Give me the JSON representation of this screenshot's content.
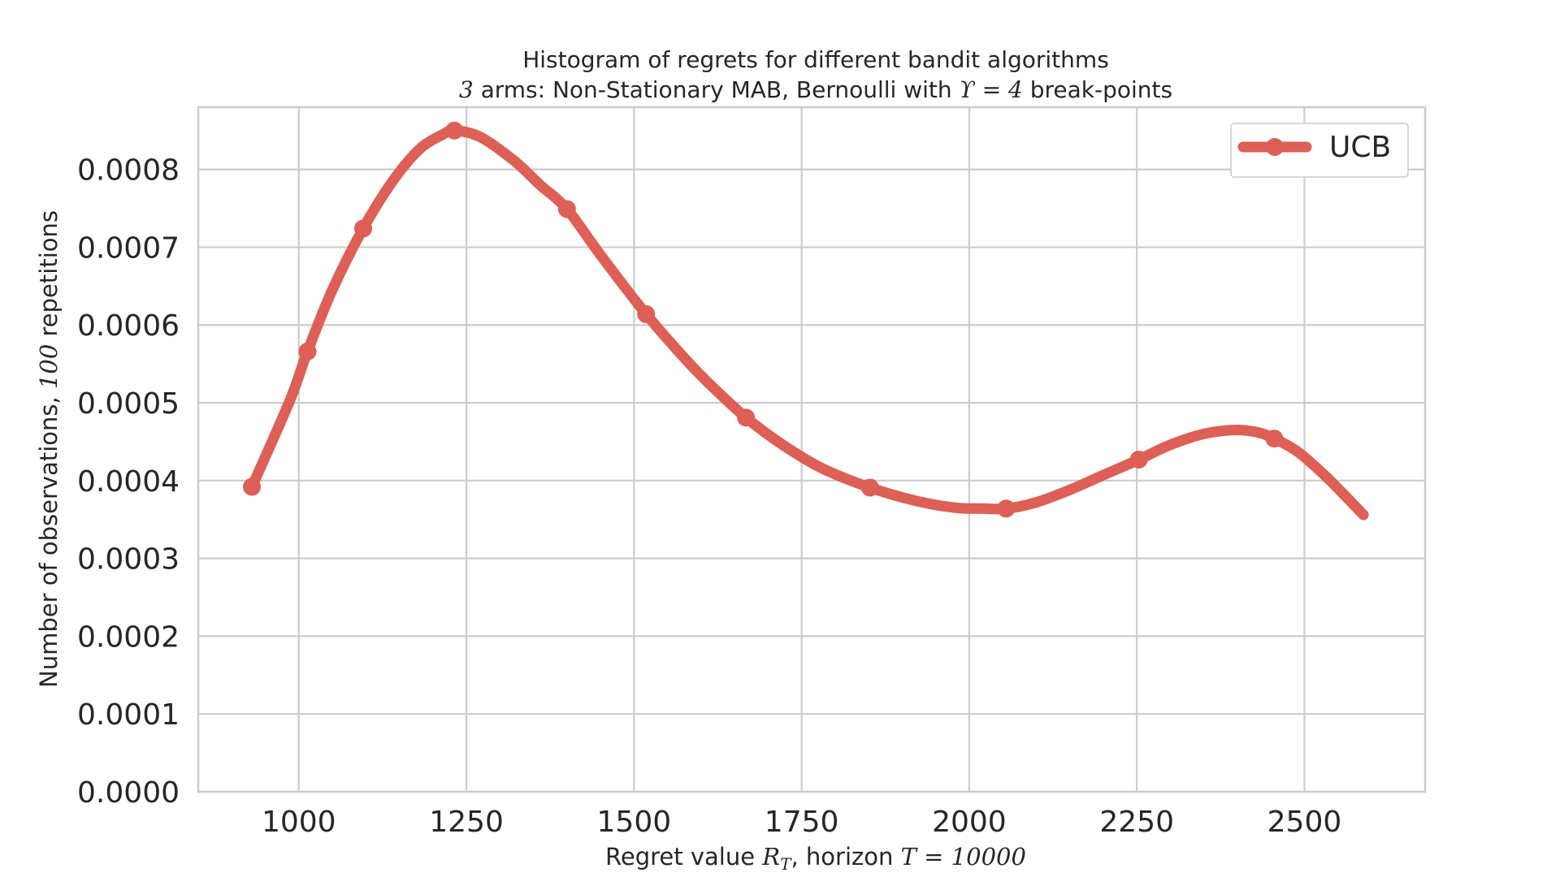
{
  "chart_data": {
    "type": "line",
    "title": "Histogram of regrets for different bandit algorithms",
    "subtitle": {
      "prefix_math": "3",
      "text1": " arms: Non-Stationary MAB, Bernoulli with ",
      "math": "ϒ = 4",
      "text2": " break-points"
    },
    "xlabel": {
      "text1": "Regret value ",
      "math_var": "R",
      "math_sub": "T",
      "text2": ", horizon ",
      "math2": "T = 10000"
    },
    "ylabel": {
      "text1": "Number of observations, ",
      "math": "100",
      "text2": " repetitions"
    },
    "xlim": [
      850,
      2680
    ],
    "ylim": [
      0,
      0.00088
    ],
    "xticks": [
      1000,
      1250,
      1500,
      1750,
      2000,
      2250,
      2500
    ],
    "xtick_labels": [
      "1000",
      "1250",
      "1500",
      "1750",
      "2000",
      "2250",
      "2500"
    ],
    "yticks": [
      0,
      0.0001,
      0.0002,
      0.0003,
      0.0004,
      0.0005,
      0.0006,
      0.0007,
      0.0008
    ],
    "ytick_labels": [
      "0.0000",
      "0.0001",
      "0.0002",
      "0.0003",
      "0.0004",
      "0.0005",
      "0.0006",
      "0.0007",
      "0.0008"
    ],
    "grid": true,
    "legend_position": "top-right",
    "series": [
      {
        "name": "UCB",
        "color": "#dd5f55",
        "curve": [
          [
            930,
            0.000392
          ],
          [
            960,
            0.00045
          ],
          [
            990,
            0.00051
          ],
          [
            1013,
            0.000566
          ],
          [
            1050,
            0.000645
          ],
          [
            1096,
            0.000724
          ],
          [
            1140,
            0.000785
          ],
          [
            1180,
            0.000826
          ],
          [
            1215,
            0.000845
          ],
          [
            1232,
            0.00085
          ],
          [
            1270,
            0.000842
          ],
          [
            1320,
            0.000812
          ],
          [
            1360,
            0.00078
          ],
          [
            1400,
            0.000749
          ],
          [
            1450,
            0.00069
          ],
          [
            1518,
            0.000614
          ],
          [
            1580,
            0.000553
          ],
          [
            1620,
            0.000518
          ],
          [
            1667,
            0.000481
          ],
          [
            1720,
            0.000447
          ],
          [
            1780,
            0.000416
          ],
          [
            1852,
            0.000391
          ],
          [
            1920,
            0.000374
          ],
          [
            1980,
            0.000365
          ],
          [
            2020,
            0.000364
          ],
          [
            2055,
            0.000364
          ],
          [
            2100,
            0.000372
          ],
          [
            2150,
            0.000388
          ],
          [
            2200,
            0.000407
          ],
          [
            2253,
            0.000427
          ],
          [
            2300,
            0.000446
          ],
          [
            2350,
            0.00046
          ],
          [
            2395,
            0.000465
          ],
          [
            2430,
            0.000462
          ],
          [
            2455,
            0.000454
          ],
          [
            2490,
            0.000437
          ],
          [
            2530,
            0.000407
          ],
          [
            2560,
            0.000381
          ],
          [
            2588,
            0.000356
          ]
        ],
        "markers": [
          [
            930,
            0.000392
          ],
          [
            1013,
            0.000566
          ],
          [
            1096,
            0.000724
          ],
          [
            1232,
            0.00085
          ],
          [
            1400,
            0.000749
          ],
          [
            1518,
            0.000614
          ],
          [
            1667,
            0.000481
          ],
          [
            1852,
            0.000391
          ],
          [
            2055,
            0.000364
          ],
          [
            2253,
            0.000427
          ],
          [
            2455,
            0.000454
          ]
        ]
      }
    ]
  }
}
